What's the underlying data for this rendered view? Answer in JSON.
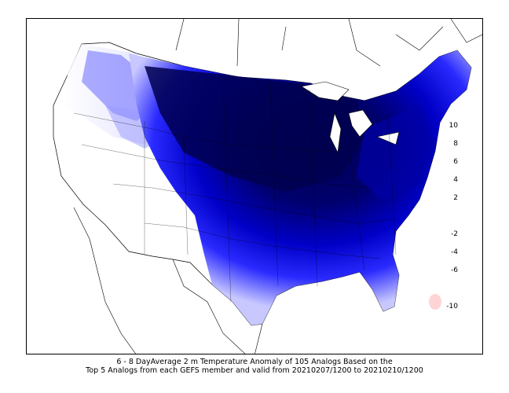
{
  "caption": {
    "line1": "6 - 8 DayAverage 2 m Temperature Anomaly of 105 Analogs Based on the",
    "line2": "Top 5 Analogs from each GEFS member and valid from 20210207/1200 to 20210210/1200"
  },
  "colorbar": {
    "ticks": [
      "10",
      "8",
      "6",
      "4",
      "2",
      "-2",
      "-4",
      "-6",
      "-10"
    ],
    "colors": {
      "max": "#6a0000",
      "neutral": "#ffffff",
      "min": "#00006a"
    }
  },
  "map": {
    "region": "contiguous-united-states",
    "variable": "2 m temperature anomaly"
  }
}
